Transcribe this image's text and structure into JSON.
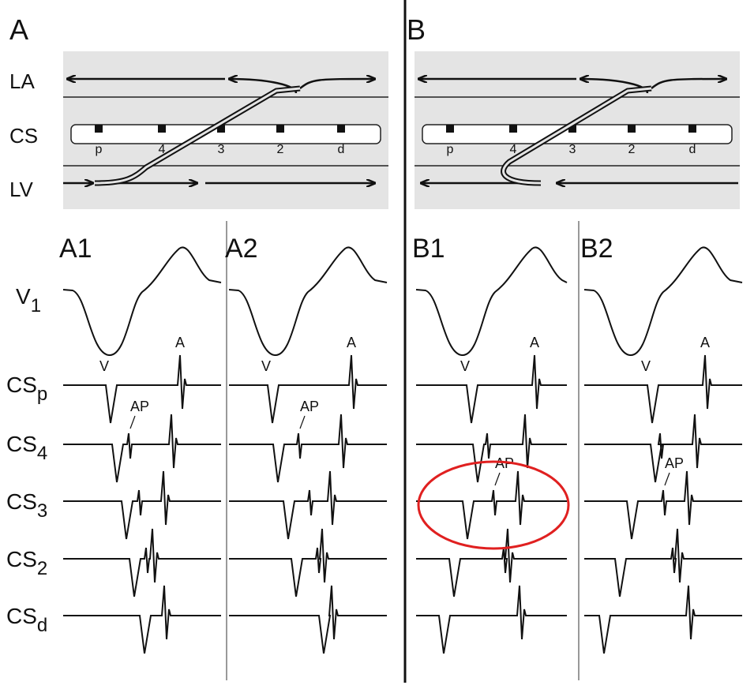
{
  "panels": [
    {
      "label": "A",
      "electrodes": [
        "p",
        "4",
        "3",
        "2",
        "d"
      ],
      "subpanels": [
        {
          "label": "A1",
          "v": "V",
          "a": "A",
          "ap": "AP"
        },
        {
          "label": "A2",
          "v": "V",
          "a": "A",
          "ap": "AP"
        }
      ]
    },
    {
      "label": "B",
      "electrodes": [
        "p",
        "4",
        "3",
        "2",
        "d"
      ],
      "subpanels": [
        {
          "label": "B1",
          "v": "V",
          "a": "A",
          "ap": "AP"
        },
        {
          "label": "B2",
          "v": "V",
          "a": "A",
          "ap": "AP"
        }
      ]
    }
  ],
  "rows": [
    "LA",
    "CS",
    "LV"
  ],
  "leads": [
    {
      "name": "V",
      "sub": "1"
    },
    {
      "name": "CS",
      "sub": "p"
    },
    {
      "name": "CS",
      "sub": "4"
    },
    {
      "name": "CS",
      "sub": "3"
    },
    {
      "name": "CS",
      "sub": "2"
    },
    {
      "name": "CS",
      "sub": "d"
    }
  ]
}
